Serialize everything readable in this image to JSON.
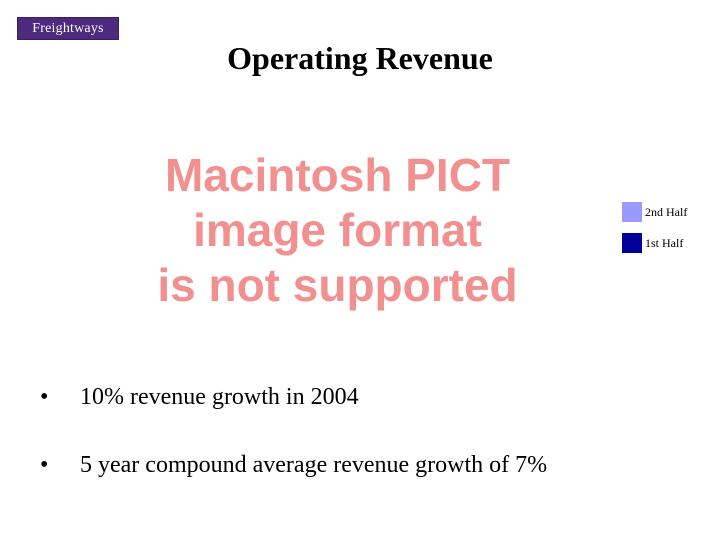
{
  "logo": {
    "text": "Freightways",
    "color": "#4d2a7e"
  },
  "title": "Operating Revenue",
  "image_placeholder": {
    "lines": [
      "Macintosh PICT",
      "image format",
      "is not supported"
    ],
    "color": "#f28f8f"
  },
  "legend": [
    {
      "label": "2nd Half",
      "color": "#9999ff"
    },
    {
      "label": "1st Half",
      "color": "#000099"
    }
  ],
  "bullets": [
    {
      "marker": "•",
      "text": "10% revenue growth in 2004"
    },
    {
      "marker": "•",
      "text": "5 year compound average revenue growth of 7%"
    }
  ]
}
